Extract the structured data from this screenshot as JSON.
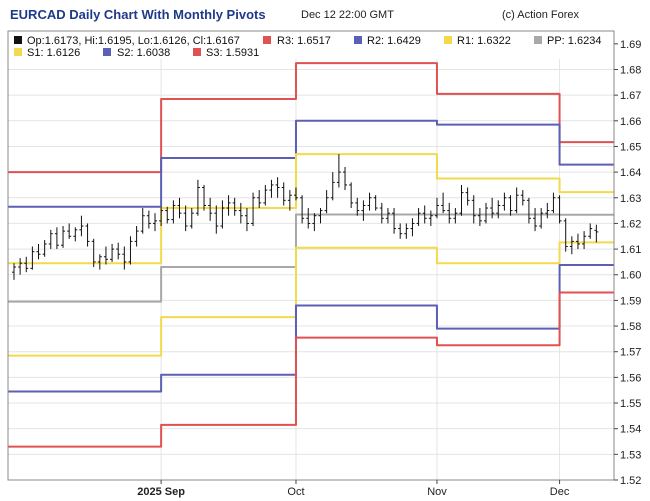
{
  "header": {
    "title": "EURCAD Daily Chart With Monthly Pivots",
    "date": "Dec 12 22:00 GMT",
    "copyright": "(c) Action Forex"
  },
  "legend": {
    "ohlc": "Op:1.6173, Hi:1.6195, Lo:1.6126, Cl:1.6167",
    "r3": "R3: 1.6517",
    "r2": "R2: 1.6429",
    "r1": "R1: 1.6322",
    "pp": "PP: 1.6234",
    "s1": "S1: 1.6126",
    "s2": "S2: 1.6038",
    "s3": "S3: 1.5931"
  },
  "colors": {
    "r3": "#e05252",
    "s3": "#e05252",
    "r2": "#5b5fb5",
    "s2": "#5b5fb5",
    "r1": "#f2d94e",
    "s1": "#f2d94e",
    "pp": "#a8a8a8",
    "candle": "#111111",
    "grid": "#e4e4e4"
  },
  "chart_data": {
    "type": "line",
    "title": "EURCAD Daily Chart With Monthly Pivots",
    "ylim": [
      1.52,
      1.695
    ],
    "y_ticks": [
      "1.52",
      "1.53",
      "1.54",
      "1.55",
      "1.56",
      "1.57",
      "1.58",
      "1.59",
      "1.60",
      "1.61",
      "1.62",
      "1.63",
      "1.64",
      "1.65",
      "1.66",
      "1.67",
      "1.68",
      "1.69"
    ],
    "x_ticks": [
      {
        "label": "2025 Sep",
        "bold": true,
        "day": 24
      },
      {
        "label": "Oct",
        "bold": false,
        "day": 46
      },
      {
        "label": "Nov",
        "bold": false,
        "day": 69
      },
      {
        "label": "Dec",
        "bold": false,
        "day": 89
      }
    ],
    "x_range": [
      0,
      96
    ],
    "grid": true,
    "pivot_series": [
      {
        "name": "R3",
        "key": "r3",
        "segments": [
          [
            0,
            24,
            1.64
          ],
          [
            24,
            46,
            1.6685
          ],
          [
            46,
            69,
            1.6825
          ],
          [
            69,
            89,
            1.6705
          ],
          [
            89,
            96,
            1.6517
          ]
        ]
      },
      {
        "name": "R2",
        "key": "r2",
        "segments": [
          [
            0,
            24,
            1.6265
          ],
          [
            24,
            46,
            1.6455
          ],
          [
            46,
            69,
            1.66
          ],
          [
            69,
            89,
            1.6585
          ],
          [
            89,
            96,
            1.6429
          ]
        ]
      },
      {
        "name": "R1",
        "key": "r1",
        "segments": [
          [
            0,
            24,
            1.6045
          ],
          [
            24,
            46,
            1.626
          ],
          [
            46,
            69,
            1.647
          ],
          [
            69,
            89,
            1.6375
          ],
          [
            89,
            96,
            1.6322
          ]
        ]
      },
      {
        "name": "PP",
        "key": "pp",
        "segments": [
          [
            0,
            24,
            1.5895
          ],
          [
            24,
            46,
            1.603
          ],
          [
            46,
            69,
            1.6235
          ],
          [
            69,
            89,
            1.6235
          ],
          [
            89,
            96,
            1.6234
          ]
        ]
      },
      {
        "name": "S1",
        "key": "s1",
        "segments": [
          [
            0,
            24,
            1.5685
          ],
          [
            24,
            46,
            1.5835
          ],
          [
            46,
            69,
            1.6105
          ],
          [
            69,
            89,
            1.6045
          ],
          [
            89,
            96,
            1.6126
          ]
        ]
      },
      {
        "name": "S2",
        "key": "s2",
        "segments": [
          [
            0,
            24,
            1.5545
          ],
          [
            24,
            46,
            1.561
          ],
          [
            46,
            69,
            1.588
          ],
          [
            69,
            89,
            1.579
          ],
          [
            89,
            96,
            1.6038
          ]
        ]
      },
      {
        "name": "S3",
        "key": "s3",
        "segments": [
          [
            0,
            24,
            1.533
          ],
          [
            24,
            46,
            1.5415
          ],
          [
            46,
            69,
            1.5755
          ],
          [
            69,
            89,
            1.5725
          ],
          [
            89,
            96,
            1.5931
          ]
        ]
      }
    ],
    "ohlc": [
      [
        0,
        1.601,
        1.6045,
        1.598,
        1.603
      ],
      [
        1,
        1.603,
        1.6065,
        1.6,
        1.6045
      ],
      [
        2,
        1.6045,
        1.607,
        1.601,
        1.6025
      ],
      [
        3,
        1.6025,
        1.611,
        1.602,
        1.609
      ],
      [
        4,
        1.609,
        1.612,
        1.606,
        1.608
      ],
      [
        5,
        1.608,
        1.6135,
        1.607,
        1.612
      ],
      [
        6,
        1.612,
        1.6175,
        1.61,
        1.616
      ],
      [
        7,
        1.616,
        1.6185,
        1.61,
        1.6115
      ],
      [
        8,
        1.6115,
        1.619,
        1.6105,
        1.617
      ],
      [
        9,
        1.617,
        1.62,
        1.614,
        1.615
      ],
      [
        10,
        1.615,
        1.6185,
        1.613,
        1.6175
      ],
      [
        11,
        1.6175,
        1.623,
        1.615,
        1.619
      ],
      [
        12,
        1.619,
        1.62,
        1.611,
        1.613
      ],
      [
        13,
        1.613,
        1.614,
        1.603,
        1.605
      ],
      [
        14,
        1.605,
        1.608,
        1.602,
        1.607
      ],
      [
        15,
        1.607,
        1.611,
        1.604,
        1.606
      ],
      [
        16,
        1.606,
        1.612,
        1.605,
        1.61
      ],
      [
        17,
        1.61,
        1.6125,
        1.606,
        1.608
      ],
      [
        18,
        1.608,
        1.611,
        1.602,
        1.605
      ],
      [
        19,
        1.605,
        1.615,
        1.604,
        1.613
      ],
      [
        20,
        1.613,
        1.619,
        1.611,
        1.617
      ],
      [
        21,
        1.617,
        1.626,
        1.616,
        1.623
      ],
      [
        22,
        1.623,
        1.625,
        1.618,
        1.62
      ],
      [
        23,
        1.62,
        1.624,
        1.617,
        1.621
      ],
      [
        24,
        1.621,
        1.6265,
        1.619,
        1.625
      ],
      [
        25,
        1.625,
        1.6265,
        1.62,
        1.6215
      ],
      [
        26,
        1.6215,
        1.629,
        1.62,
        1.627
      ],
      [
        27,
        1.627,
        1.63,
        1.622,
        1.624
      ],
      [
        28,
        1.624,
        1.627,
        1.617,
        1.619
      ],
      [
        29,
        1.619,
        1.626,
        1.618,
        1.624
      ],
      [
        30,
        1.624,
        1.637,
        1.623,
        1.634
      ],
      [
        31,
        1.634,
        1.635,
        1.625,
        1.627
      ],
      [
        32,
        1.627,
        1.63,
        1.621,
        1.624
      ],
      [
        33,
        1.624,
        1.627,
        1.616,
        1.619
      ],
      [
        34,
        1.619,
        1.629,
        1.618,
        1.626
      ],
      [
        35,
        1.626,
        1.631,
        1.623,
        1.628
      ],
      [
        36,
        1.628,
        1.63,
        1.623,
        1.625
      ],
      [
        37,
        1.625,
        1.628,
        1.62,
        1.623
      ],
      [
        38,
        1.623,
        1.626,
        1.617,
        1.62
      ],
      [
        39,
        1.62,
        1.632,
        1.619,
        1.63
      ],
      [
        40,
        1.63,
        1.633,
        1.626,
        1.628
      ],
      [
        41,
        1.628,
        1.635,
        1.627,
        1.633
      ],
      [
        42,
        1.633,
        1.637,
        1.63,
        1.635
      ],
      [
        43,
        1.635,
        1.638,
        1.63,
        1.634
      ],
      [
        44,
        1.634,
        1.636,
        1.627,
        1.629
      ],
      [
        45,
        1.629,
        1.633,
        1.625,
        1.631
      ],
      [
        46,
        1.631,
        1.634,
        1.629,
        1.63
      ],
      [
        47,
        1.63,
        1.631,
        1.62,
        1.622
      ],
      [
        48,
        1.622,
        1.626,
        1.618,
        1.62
      ],
      [
        49,
        1.62,
        1.624,
        1.617,
        1.623
      ],
      [
        50,
        1.623,
        1.626,
        1.62,
        1.625
      ],
      [
        51,
        1.625,
        1.633,
        1.624,
        1.63
      ],
      [
        52,
        1.63,
        1.64,
        1.629,
        1.636
      ],
      [
        53,
        1.636,
        1.647,
        1.634,
        1.64
      ],
      [
        54,
        1.64,
        1.642,
        1.633,
        1.635
      ],
      [
        55,
        1.635,
        1.636,
        1.626,
        1.628
      ],
      [
        56,
        1.628,
        1.63,
        1.623,
        1.625
      ],
      [
        57,
        1.625,
        1.629,
        1.621,
        1.627
      ],
      [
        58,
        1.627,
        1.632,
        1.625,
        1.63
      ],
      [
        59,
        1.63,
        1.631,
        1.625,
        1.626
      ],
      [
        60,
        1.626,
        1.628,
        1.62,
        1.622
      ],
      [
        61,
        1.622,
        1.626,
        1.62,
        1.624
      ],
      [
        62,
        1.624,
        1.626,
        1.616,
        1.618
      ],
      [
        63,
        1.618,
        1.62,
        1.614,
        1.616
      ],
      [
        64,
        1.616,
        1.62,
        1.614,
        1.618
      ],
      [
        65,
        1.618,
        1.622,
        1.615,
        1.62
      ],
      [
        66,
        1.62,
        1.626,
        1.619,
        1.624
      ],
      [
        67,
        1.624,
        1.627,
        1.62,
        1.622
      ],
      [
        68,
        1.622,
        1.625,
        1.619,
        1.623
      ],
      [
        69,
        1.623,
        1.63,
        1.622,
        1.627
      ],
      [
        70,
        1.627,
        1.632,
        1.624,
        1.625
      ],
      [
        71,
        1.625,
        1.628,
        1.62,
        1.622
      ],
      [
        72,
        1.622,
        1.626,
        1.62,
        1.624
      ],
      [
        73,
        1.624,
        1.635,
        1.623,
        1.632
      ],
      [
        74,
        1.632,
        1.634,
        1.627,
        1.629
      ],
      [
        75,
        1.629,
        1.631,
        1.62,
        1.623
      ],
      [
        76,
        1.623,
        1.626,
        1.619,
        1.621
      ],
      [
        77,
        1.621,
        1.628,
        1.62,
        1.626
      ],
      [
        78,
        1.626,
        1.63,
        1.622,
        1.624
      ],
      [
        79,
        1.624,
        1.629,
        1.622,
        1.627
      ],
      [
        80,
        1.627,
        1.632,
        1.625,
        1.63
      ],
      [
        81,
        1.63,
        1.631,
        1.623,
        1.625
      ],
      [
        82,
        1.625,
        1.634,
        1.624,
        1.631
      ],
      [
        83,
        1.631,
        1.633,
        1.627,
        1.629
      ],
      [
        84,
        1.629,
        1.63,
        1.62,
        1.622
      ],
      [
        85,
        1.622,
        1.626,
        1.617,
        1.619
      ],
      [
        86,
        1.619,
        1.626,
        1.618,
        1.624
      ],
      [
        87,
        1.624,
        1.628,
        1.622,
        1.625
      ],
      [
        88,
        1.625,
        1.632,
        1.624,
        1.63
      ],
      [
        89,
        1.63,
        1.631,
        1.62,
        1.621
      ],
      [
        90,
        1.621,
        1.622,
        1.609,
        1.611
      ],
      [
        91,
        1.611,
        1.615,
        1.608,
        1.613
      ],
      [
        92,
        1.613,
        1.616,
        1.61,
        1.612
      ],
      [
        93,
        1.612,
        1.617,
        1.61,
        1.615
      ],
      [
        94,
        1.615,
        1.62,
        1.614,
        1.618
      ],
      [
        95,
        1.6173,
        1.6195,
        1.6126,
        1.6167
      ]
    ]
  }
}
